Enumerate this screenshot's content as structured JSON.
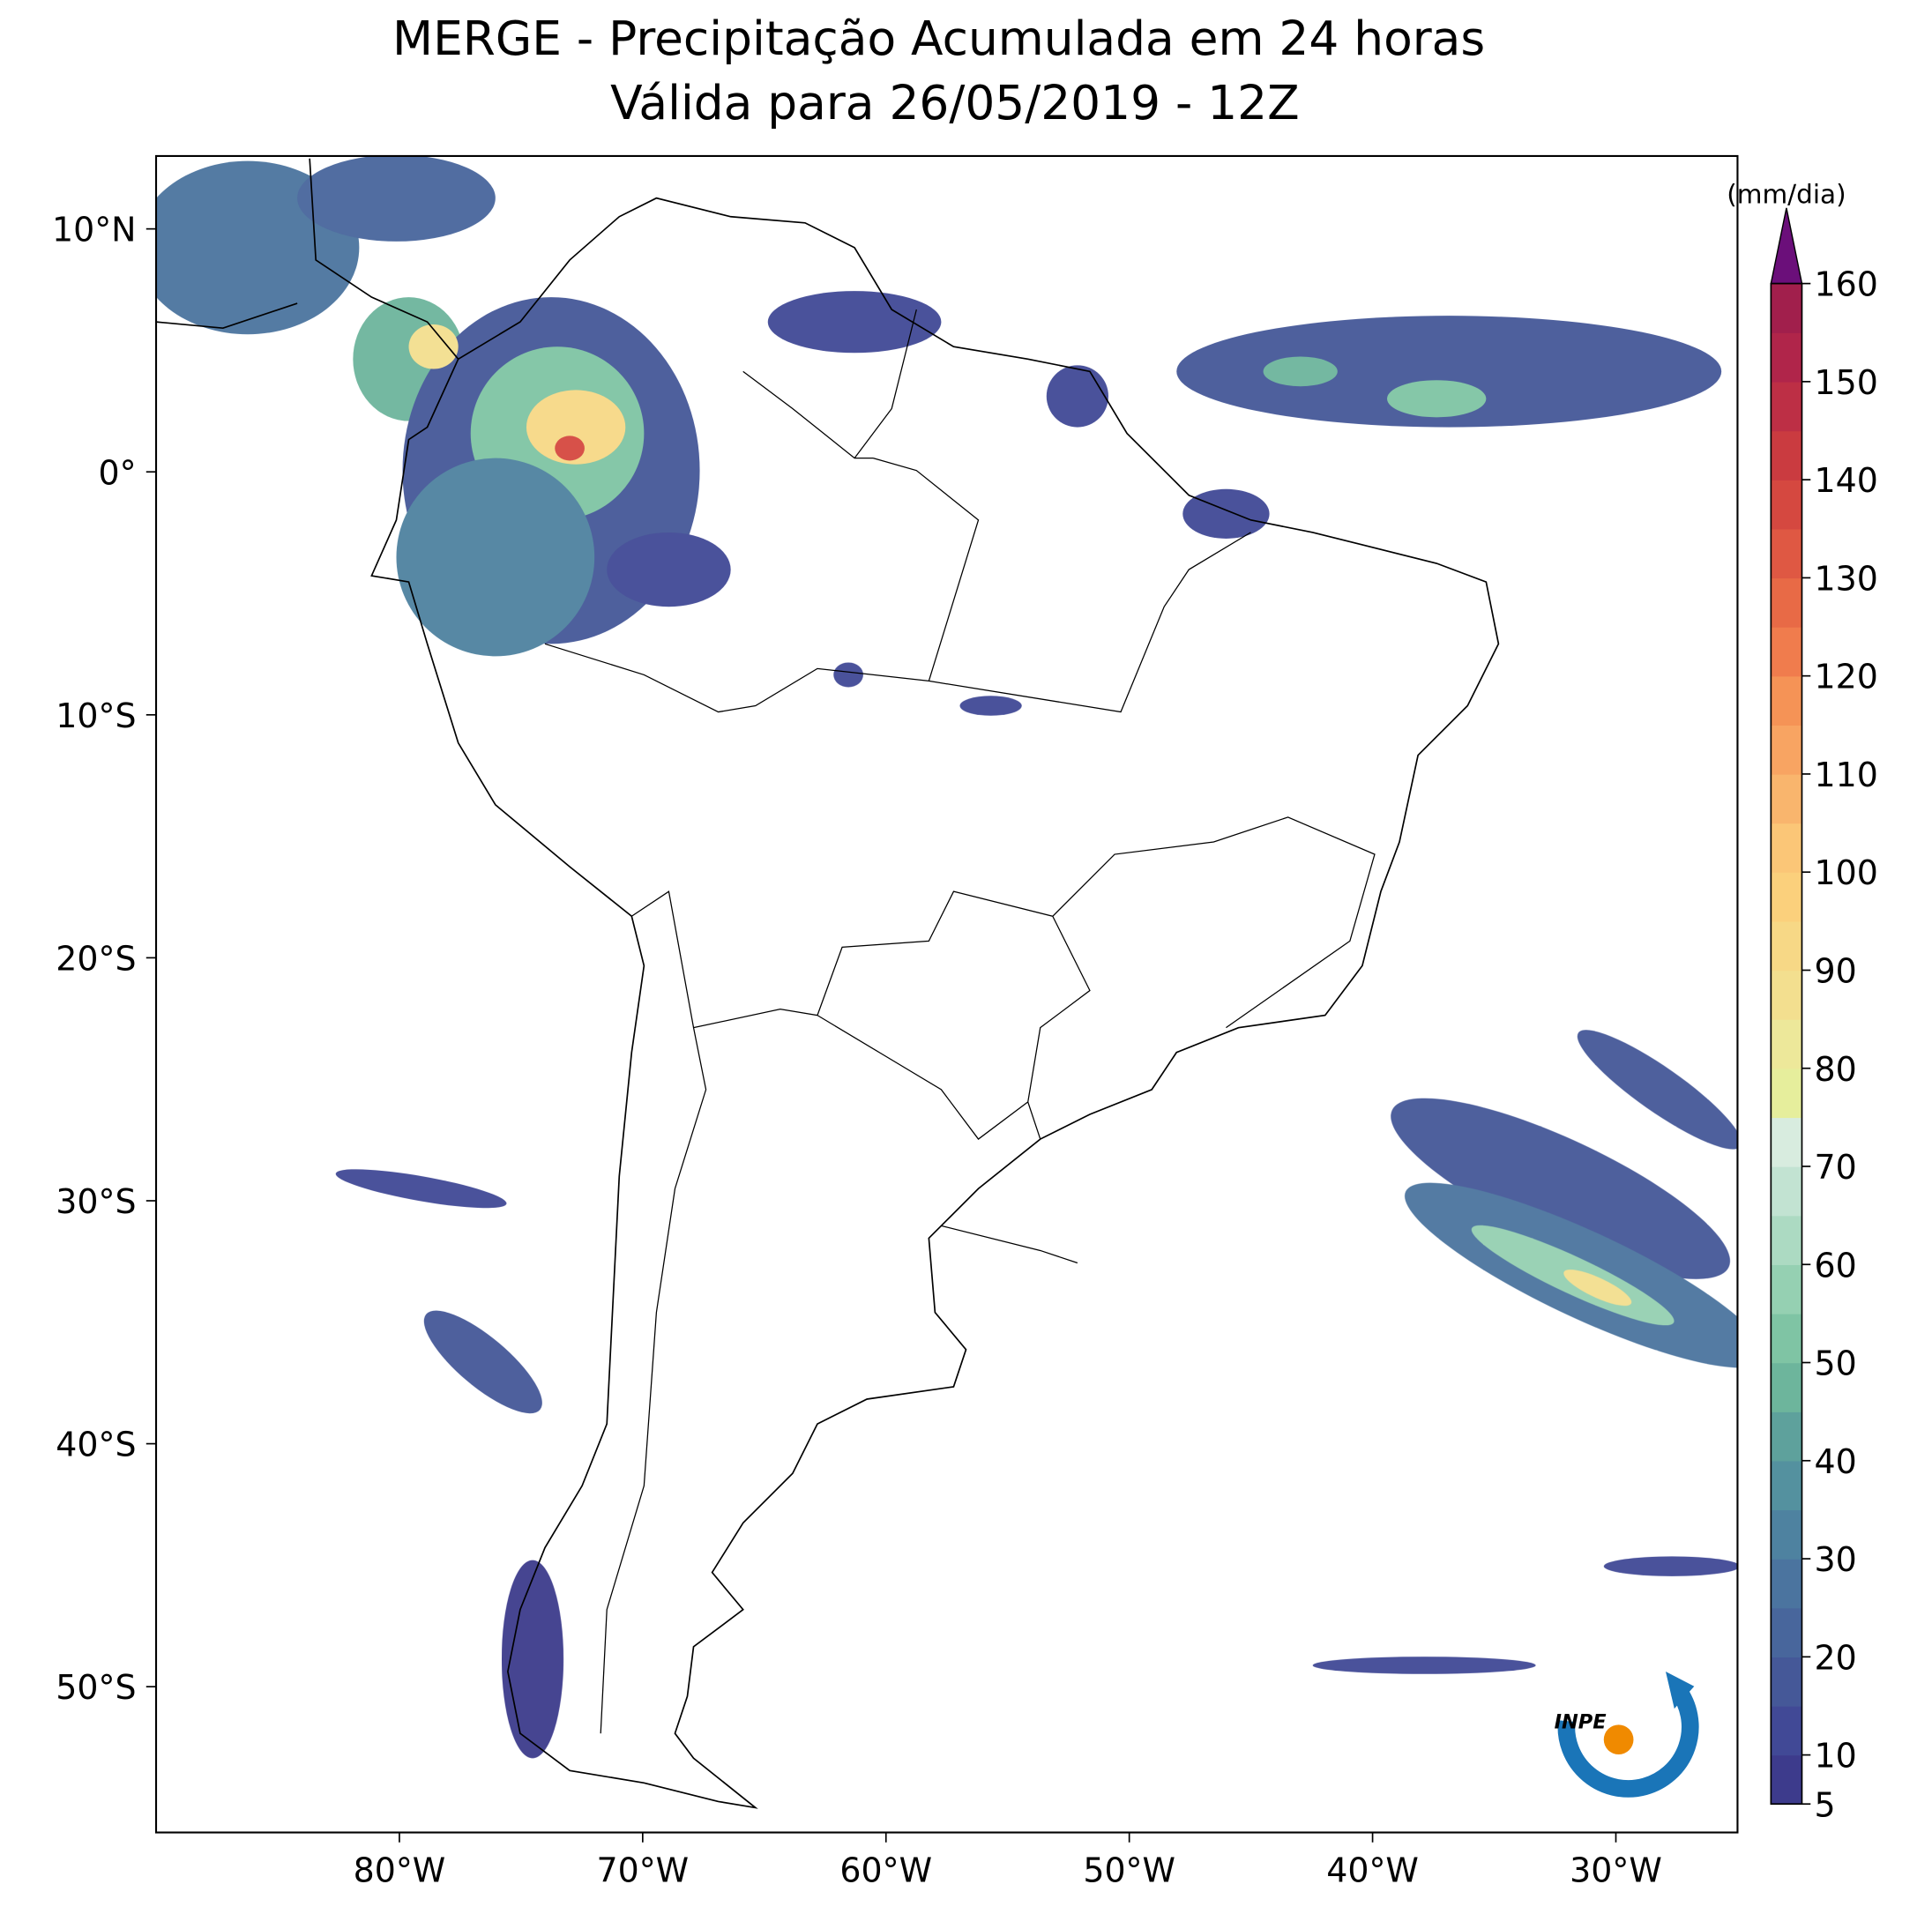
{
  "chart_data": {
    "type": "map",
    "title": "MERGE - Precipitação Acumulada em 24 horas",
    "subtitle": "Válida para 26/05/2019 - 12Z",
    "xlim": [
      -90,
      -25
    ],
    "ylim": [
      -56,
      13
    ],
    "xticks": [
      {
        "value": -80,
        "label": "80°W"
      },
      {
        "value": -70,
        "label": "70°W"
      },
      {
        "value": -60,
        "label": "60°W"
      },
      {
        "value": -50,
        "label": "50°W"
      },
      {
        "value": -40,
        "label": "40°W"
      },
      {
        "value": -30,
        "label": "30°W"
      }
    ],
    "yticks": [
      {
        "value": 10,
        "label": "10°N"
      },
      {
        "value": 0,
        "label": "0°"
      },
      {
        "value": -10,
        "label": "10°S"
      },
      {
        "value": -20,
        "label": "20°S"
      },
      {
        "value": -30,
        "label": "30°S"
      },
      {
        "value": -40,
        "label": "40°S"
      },
      {
        "value": -50,
        "label": "50°S"
      }
    ],
    "colorbar": {
      "label": "(mm/dia)",
      "lim": [
        5,
        160
      ],
      "ticks": [
        5,
        10,
        20,
        30,
        40,
        50,
        60,
        70,
        80,
        90,
        100,
        110,
        120,
        130,
        140,
        150,
        160
      ],
      "colors": [
        "#3d3b8c",
        "#414996",
        "#455898",
        "#48669c",
        "#4b749f",
        "#4e82a0",
        "#54919f",
        "#5ea19c",
        "#6db59c",
        "#7fc4a4",
        "#95d0b2",
        "#acdac2",
        "#c2e3d2",
        "#d8ecdf",
        "#e6ee9c",
        "#ede89a",
        "#f3df8f",
        "#f7d886",
        "#fbd07c",
        "#fbc677",
        "#f9b56d",
        "#f8a462",
        "#f59356",
        "#f07c4d",
        "#e86a46",
        "#df5843",
        "#d54840",
        "#ca3b40",
        "#bd2f45",
        "#b0254a",
        "#a11f4c"
      ],
      "extend_color": "#6b0f7a"
    },
    "logo": "INPE"
  }
}
